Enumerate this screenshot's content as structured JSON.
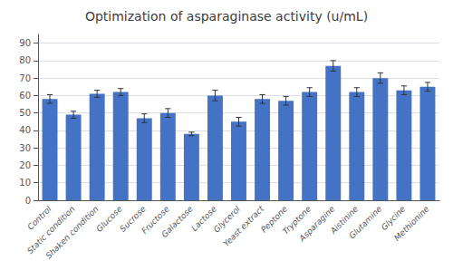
{
  "chart_data": {
    "type": "bar",
    "title": "Optimization of asparaginase activity (u/mL)",
    "categories": [
      "Control",
      "Static condition",
      "Shaken condition",
      "Glucose",
      "Sucrose",
      "Fructose",
      "Galactose",
      "Lactose",
      "Glycerol",
      "Yeast extract",
      "Peptone",
      "Tryptone",
      "Asparagine",
      "Aistinine",
      "Glutamine",
      "Glycine",
      "Methionine"
    ],
    "values": [
      58,
      49,
      61,
      62,
      47,
      50,
      38,
      60,
      45,
      58,
      57,
      62,
      77,
      62,
      70,
      63,
      65
    ],
    "errors": [
      2.5,
      2.0,
      2.0,
      2.0,
      2.5,
      2.5,
      1.0,
      3.0,
      2.5,
      2.5,
      2.5,
      2.5,
      3.0,
      2.5,
      3.0,
      2.5,
      2.5
    ],
    "color": "#4472C4",
    "ylim": [
      0,
      95
    ],
    "yticks": [
      0,
      10,
      20,
      30,
      40,
      50,
      60,
      70,
      80,
      90
    ],
    "grid": true
  }
}
